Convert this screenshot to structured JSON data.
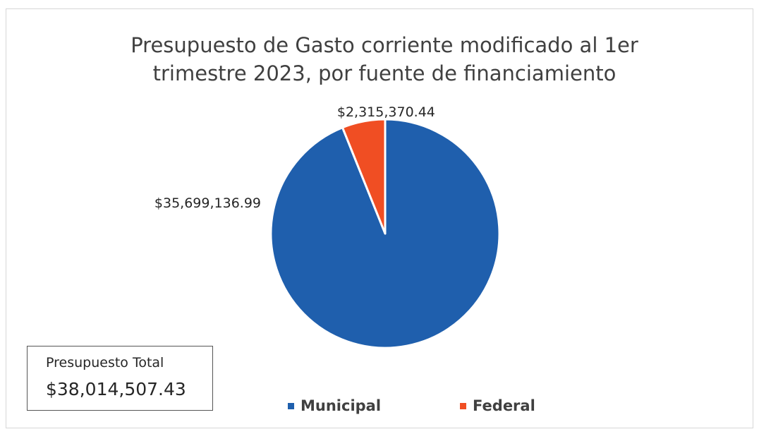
{
  "chart_data": {
    "type": "pie",
    "title": "Presupuesto de Gasto corriente modificado al 1er\ntrimestre 2023, por fuente de financiamiento",
    "categories": [
      "Municipal",
      "Federal"
    ],
    "values": [
      35699136.99,
      2315370.44
    ],
    "data_labels": [
      "$35,699,136.99",
      "$2,315,370.44"
    ],
    "colors": [
      "#1f5fad",
      "#f04e23"
    ],
    "legend_position": "bottom",
    "start_angle_deg": 0,
    "direction": "clockwise"
  },
  "total_box": {
    "label": "Presupuesto Total",
    "value": "$38,014,507.43"
  }
}
